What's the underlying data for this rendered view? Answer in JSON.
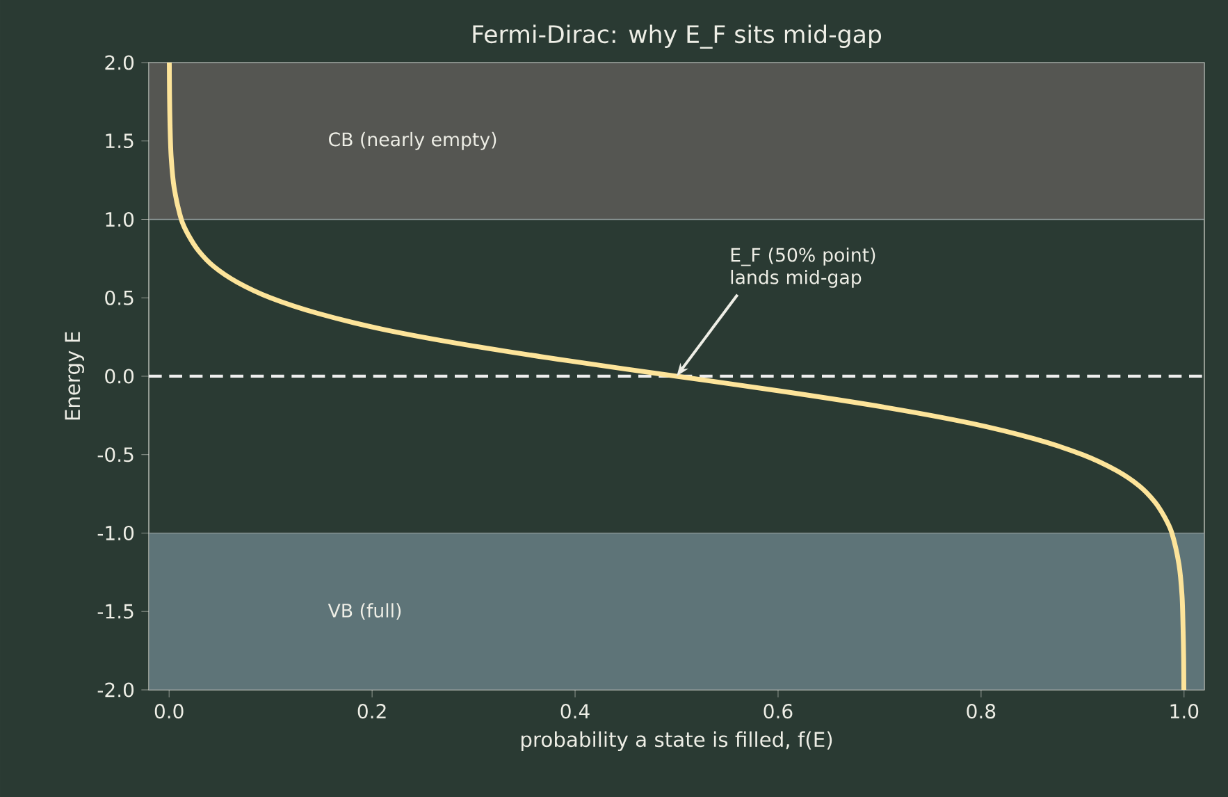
{
  "chart_data": {
    "type": "line",
    "title": "Fermi-Dirac: why E_F sits mid-gap",
    "xlabel": "probability a state is filled,  f(E)",
    "ylabel": "Energy  E",
    "series": [
      {
        "color": "#fde49a",
        "x": [
          0.0002,
          0.0004,
          0.0009,
          0.002,
          0.005,
          0.012,
          0.019,
          0.029,
          0.044,
          0.067,
          0.1,
          0.147,
          0.21,
          0.293,
          0.392,
          0.5,
          0.608,
          0.707,
          0.79,
          0.853,
          0.9,
          0.933,
          0.956,
          0.971,
          0.981,
          0.988,
          0.995,
          0.998,
          0.999,
          0.9996,
          0.9998
        ],
        "values": [
          2.0,
          1.8,
          1.6,
          1.4,
          1.2,
          1.0,
          0.9,
          0.8,
          0.7,
          0.6,
          0.5,
          0.4,
          0.3,
          0.2,
          0.1,
          0.0,
          -0.1,
          -0.2,
          -0.3,
          -0.4,
          -0.5,
          -0.6,
          -0.7,
          -0.8,
          -0.9,
          -1.0,
          -1.2,
          -1.4,
          -1.6,
          -1.8,
          -2.0
        ]
      }
    ],
    "xlim": [
      -0.02,
      1.02
    ],
    "ylim": [
      -2,
      2
    ],
    "xticks": [
      {
        "value": 0,
        "label": "0.0"
      },
      0.2,
      0.4,
      0.6,
      0.8,
      {
        "value": 1,
        "label": "1.0"
      }
    ],
    "yticks": [
      {
        "value": -2,
        "label": "-2.0"
      },
      -1.5,
      {
        "value": -1,
        "label": "-1.0"
      },
      -0.5,
      {
        "value": 0,
        "label": "0.0"
      },
      0.5,
      {
        "value": 1,
        "label": "1.0"
      },
      1.5,
      {
        "value": 2,
        "label": "2.0"
      }
    ],
    "bands": [
      {
        "axis": "y",
        "from": 1,
        "to": 2,
        "label": "CB (nearly empty)",
        "color": "#555652"
      },
      {
        "axis": "y",
        "from": -2,
        "to": -1,
        "label": "VB (full)",
        "color": "#5e7478"
      }
    ],
    "ref_lines": [
      {
        "axis": "y",
        "value": 0,
        "color": "#eeeeee",
        "line_style": "dashed"
      }
    ],
    "annotations": [
      {
        "text": "E_F  (50% point) lands mid-gap",
        "x": 0.5,
        "y": 0
      }
    ],
    "grid": false,
    "marker": "none",
    "line_style": "solid"
  }
}
